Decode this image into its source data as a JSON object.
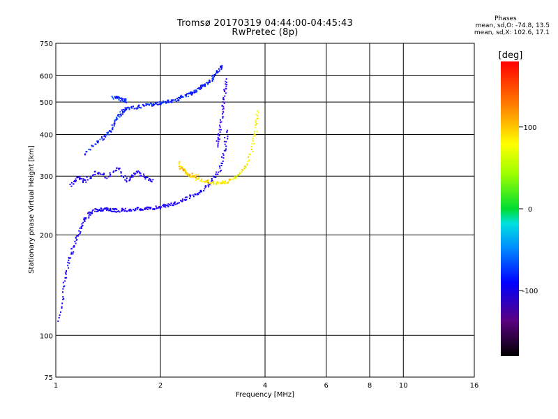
{
  "header": {
    "title": "Tromsø 20170319 04:44:00-04:45:43",
    "subtitle": "RwPretec (8p)",
    "stats_title": "Phases",
    "stats_o": "mean, sd,O: -74.8, 13.5",
    "stats_x": "mean, sd,X: 102.6, 17.1"
  },
  "chart_data": {
    "type": "scatter",
    "xlabel": "Frequency [MHz]",
    "ylabel": "Stationary phase Virtual Height [km]",
    "xscale": "log",
    "yscale": "log",
    "xlim": [
      1,
      16
    ],
    "ylim": [
      75,
      750
    ],
    "xticks": [
      1,
      2,
      4,
      6,
      8,
      10,
      16
    ],
    "xtick_labels": [
      "1",
      "2",
      "4",
      "6",
      "8",
      "10",
      "16"
    ],
    "yticks": [
      75,
      100,
      200,
      300,
      400,
      500,
      600,
      750
    ],
    "ytick_labels": [
      "75",
      "100",
      "200",
      "300",
      "400",
      "500",
      "600",
      "750"
    ],
    "grid": true,
    "colorbar": {
      "label": "[deg]",
      "range": [
        -180,
        180
      ],
      "ticks": [
        100,
        0,
        -100
      ],
      "tick_labels": [
        "100",
        "0",
        "-100"
      ]
    },
    "series": [
      {
        "traces": [
          {
            "f": [
              1.02,
              1.05,
              1.08,
              1.12,
              1.16,
              1.2,
              1.25,
              1.3,
              1.35,
              1.4,
              1.45,
              1.5,
              1.6,
              1.7,
              1.8,
              1.9,
              2.0,
              2.1,
              2.2,
              2.35,
              2.5,
              2.65,
              2.8,
              2.95,
              3.05,
              3.1
            ],
            "h": [
              112,
              140,
              165,
              185,
              205,
              222,
              233,
              238,
              240,
              239,
              238,
              238,
              239,
              240,
              240,
              242,
              244,
              247,
              250,
              257,
              265,
              275,
              290,
              315,
              360,
              420
            ],
            "phase": -105
          },
          {
            "f": [
              1.1,
              1.15,
              1.2,
              1.3,
              1.4,
              1.5,
              1.6,
              1.7,
              1.8,
              1.9
            ],
            "h": [
              280,
              300,
              290,
              310,
              300,
              320,
              290,
              310,
              300,
              290
            ],
            "phase": -105
          },
          {
            "f": [
              1.2,
              1.3,
              1.4,
              1.45,
              1.5,
              1.55,
              1.6,
              1.7,
              1.8,
              1.9,
              2.0,
              2.1,
              2.2,
              2.3,
              2.4,
              2.5,
              2.6,
              2.7,
              2.8,
              2.9,
              3.0
            ],
            "h": [
              350,
              380,
              400,
              420,
              455,
              470,
              480,
              485,
              490,
              495,
              500,
              505,
              510,
              520,
              530,
              540,
              555,
              570,
              590,
              620,
              645
            ],
            "phase": -85
          },
          {
            "f": [
              1.45,
              1.5,
              1.55,
              1.6
            ],
            "h": [
              520,
              515,
              510,
              505
            ],
            "phase": -80
          },
          {
            "f": [
              2.9,
              2.95,
              3.0,
              3.05,
              3.1
            ],
            "h": [
              370,
              410,
              470,
              530,
              590
            ],
            "phase": -120
          },
          {
            "f": [
              2.25,
              2.35,
              2.5,
              2.65,
              2.8,
              2.95,
              3.1,
              3.3,
              3.5,
              3.65,
              3.75,
              3.8
            ],
            "h": [
              330,
              310,
              298,
              292,
              288,
              288,
              290,
              300,
              320,
              360,
              420,
              480
            ],
            "phase": 115
          },
          {
            "f": [
              2.25,
              2.4,
              2.55
            ],
            "h": [
              320,
              305,
              300
            ],
            "phase": 130
          }
        ]
      }
    ]
  }
}
